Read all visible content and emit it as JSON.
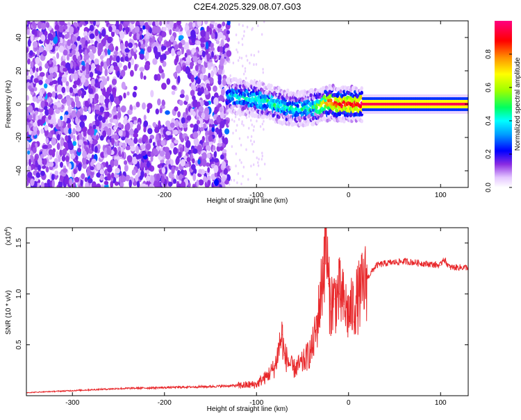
{
  "title": "C2E4.2025.329.08.07.G03",
  "colors": {
    "snr_line": "#e8282b",
    "spectrogram_sparse": "#7b2fe0",
    "spectrogram_dense": "#6a12d8"
  },
  "chart_data": [
    {
      "type": "heatmap",
      "name": "spectrogram",
      "xlabel": "Height of straight line (km)",
      "ylabel": "Frequency (Hz)",
      "xlim": [
        -350,
        130
      ],
      "ylim": [
        -50,
        50
      ],
      "xticks": [
        -300,
        -200,
        -100,
        0,
        100
      ],
      "xtick_labels": [
        "-300",
        "-200",
        "-100",
        "0",
        "100"
      ],
      "yticks": [
        -40,
        -20,
        0,
        20,
        40
      ],
      "ytick_labels": [
        "-40",
        "-20",
        "0",
        "20",
        "40"
      ],
      "colorbar": {
        "label": "Normalized spectral amplitude",
        "range": [
          0,
          1
        ],
        "ticks": [
          0.0,
          0.2,
          0.4,
          0.6,
          0.8
        ],
        "tick_labels": [
          "0.0",
          "0.2",
          "0.4",
          "0.6",
          "0.8"
        ]
      },
      "ridge": {
        "description_points_x": [
          -130,
          -100,
          -80,
          -60,
          -40,
          -20,
          -10,
          0,
          15,
          130
        ],
        "description_points_freq": [
          5,
          3,
          0,
          -3,
          -2,
          1,
          0,
          0,
          0,
          0
        ],
        "ridge_peak_amplitude": [
          0.35,
          0.4,
          0.45,
          0.4,
          0.45,
          0.8,
          0.9,
          0.85,
          0.95,
          0.95
        ]
      }
    },
    {
      "type": "line",
      "name": "snr",
      "xlabel": "Height of straight line (km)",
      "ylabel": "SNR (10 * v/v)",
      "y_multiplier_label": "(x10",
      "y_multiplier_exp": "4",
      "y_multiplier_close": ")",
      "xlim": [
        -350,
        130
      ],
      "ylim": [
        0,
        16500
      ],
      "xticks": [
        -300,
        -200,
        -100,
        0,
        100
      ],
      "xtick_labels": [
        "-300",
        "-200",
        "-100",
        "0",
        "100"
      ],
      "yticks": [
        5000,
        10000,
        15000
      ],
      "ytick_labels": [
        "0.5",
        "1.0",
        "1.5"
      ],
      "series": [
        {
          "name": "SNR",
          "x": [
            -350,
            -300,
            -250,
            -200,
            -150,
            -120,
            -100,
            -95,
            -90,
            -80,
            -75,
            -72,
            -70,
            -60,
            -50,
            -40,
            -35,
            -30,
            -27,
            -25,
            -22,
            -20,
            -15,
            -10,
            -5,
            0,
            10,
            20,
            30,
            40,
            60,
            80,
            100,
            103,
            110,
            130
          ],
          "y": [
            300,
            500,
            700,
            800,
            900,
            1000,
            1100,
            1500,
            1800,
            2800,
            5000,
            6000,
            4000,
            2600,
            3200,
            4500,
            6500,
            10000,
            13000,
            16500,
            11000,
            9000,
            9500,
            10000,
            9000,
            8000,
            9500,
            11500,
            12800,
            13000,
            13200,
            13000,
            12800,
            13500,
            12600,
            12600
          ]
        }
      ]
    }
  ]
}
